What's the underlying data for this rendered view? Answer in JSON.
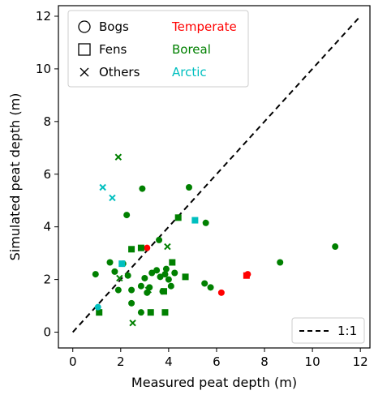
{
  "chart_data": {
    "type": "scatter",
    "xlabel": "Measured peat depth (m)",
    "ylabel": "Simulated peat depth (m)",
    "xlim": [
      -0.6,
      12.4
    ],
    "ylim": [
      -0.6,
      12.4
    ],
    "xticks": [
      "0",
      "2",
      "4",
      "6",
      "8",
      "10",
      "12"
    ],
    "yticks": [
      "0",
      "2",
      "4",
      "6",
      "8",
      "10",
      "12"
    ],
    "legend_placement": "top-left",
    "legend_shapes": [
      {
        "marker": "circle",
        "label": "Bogs"
      },
      {
        "marker": "square",
        "label": "Fens"
      },
      {
        "marker": "x",
        "label": "Others"
      }
    ],
    "legend_colors": [
      {
        "label": "Temperate",
        "color": "#ff0000"
      },
      {
        "label": "Boreal",
        "color": "#008000"
      },
      {
        "label": "Arctic",
        "color": "#00bfbf"
      }
    ],
    "reference_line": {
      "label": "1:1",
      "x": [
        0,
        12
      ],
      "y": [
        0,
        12
      ],
      "style": "dashed",
      "color": "#000000",
      "legend_placement": "bottom-right"
    },
    "series": [
      {
        "name": "Temperate",
        "color": "#ff0000",
        "points": [
          {
            "x": 3.1,
            "y": 3.2,
            "marker": "circle"
          },
          {
            "x": 6.2,
            "y": 1.5,
            "marker": "circle"
          },
          {
            "x": 7.3,
            "y": 2.2,
            "marker": "circle"
          },
          {
            "x": 7.25,
            "y": 2.15,
            "marker": "square"
          }
        ]
      },
      {
        "name": "Boreal",
        "color": "#008000",
        "points": [
          {
            "x": 0.95,
            "y": 2.2,
            "marker": "circle"
          },
          {
            "x": 1.55,
            "y": 2.65,
            "marker": "circle"
          },
          {
            "x": 1.75,
            "y": 2.3,
            "marker": "circle"
          },
          {
            "x": 1.9,
            "y": 1.6,
            "marker": "circle"
          },
          {
            "x": 2.1,
            "y": 2.6,
            "marker": "circle"
          },
          {
            "x": 2.3,
            "y": 2.15,
            "marker": "circle"
          },
          {
            "x": 2.25,
            "y": 4.45,
            "marker": "circle"
          },
          {
            "x": 2.45,
            "y": 1.1,
            "marker": "circle"
          },
          {
            "x": 2.45,
            "y": 1.6,
            "marker": "circle"
          },
          {
            "x": 2.85,
            "y": 0.75,
            "marker": "circle"
          },
          {
            "x": 2.85,
            "y": 1.75,
            "marker": "circle"
          },
          {
            "x": 2.9,
            "y": 5.45,
            "marker": "circle"
          },
          {
            "x": 3.0,
            "y": 2.05,
            "marker": "circle"
          },
          {
            "x": 3.1,
            "y": 1.5,
            "marker": "circle"
          },
          {
            "x": 3.2,
            "y": 1.7,
            "marker": "circle"
          },
          {
            "x": 3.3,
            "y": 2.25,
            "marker": "circle"
          },
          {
            "x": 3.5,
            "y": 2.35,
            "marker": "circle"
          },
          {
            "x": 3.6,
            "y": 3.5,
            "marker": "circle"
          },
          {
            "x": 3.65,
            "y": 2.1,
            "marker": "circle"
          },
          {
            "x": 3.75,
            "y": 1.55,
            "marker": "circle"
          },
          {
            "x": 3.85,
            "y": 2.2,
            "marker": "circle"
          },
          {
            "x": 3.9,
            "y": 2.4,
            "marker": "circle"
          },
          {
            "x": 4.0,
            "y": 2.0,
            "marker": "circle"
          },
          {
            "x": 4.1,
            "y": 1.75,
            "marker": "circle"
          },
          {
            "x": 4.25,
            "y": 2.25,
            "marker": "circle"
          },
          {
            "x": 4.85,
            "y": 5.5,
            "marker": "circle"
          },
          {
            "x": 5.5,
            "y": 1.85,
            "marker": "circle"
          },
          {
            "x": 5.55,
            "y": 4.15,
            "marker": "circle"
          },
          {
            "x": 5.75,
            "y": 1.7,
            "marker": "circle"
          },
          {
            "x": 8.65,
            "y": 2.65,
            "marker": "circle"
          },
          {
            "x": 10.95,
            "y": 3.25,
            "marker": "circle"
          },
          {
            "x": 1.1,
            "y": 0.75,
            "marker": "square"
          },
          {
            "x": 2.45,
            "y": 3.15,
            "marker": "square"
          },
          {
            "x": 2.85,
            "y": 3.2,
            "marker": "square"
          },
          {
            "x": 3.25,
            "y": 0.75,
            "marker": "square"
          },
          {
            "x": 3.8,
            "y": 1.55,
            "marker": "square"
          },
          {
            "x": 3.85,
            "y": 0.75,
            "marker": "square"
          },
          {
            "x": 4.15,
            "y": 2.65,
            "marker": "square"
          },
          {
            "x": 4.4,
            "y": 4.35,
            "marker": "square"
          },
          {
            "x": 4.7,
            "y": 2.1,
            "marker": "square"
          },
          {
            "x": 1.9,
            "y": 6.65,
            "marker": "x"
          },
          {
            "x": 2.5,
            "y": 0.35,
            "marker": "x"
          },
          {
            "x": 3.15,
            "y": 1.6,
            "marker": "x"
          },
          {
            "x": 3.95,
            "y": 3.25,
            "marker": "x"
          },
          {
            "x": 1.95,
            "y": 2.05,
            "marker": "x"
          }
        ]
      },
      {
        "name": "Arctic",
        "color": "#00bfbf",
        "points": [
          {
            "x": 1.05,
            "y": 0.95,
            "marker": "circle"
          },
          {
            "x": 2.05,
            "y": 2.6,
            "marker": "square"
          },
          {
            "x": 5.1,
            "y": 4.25,
            "marker": "square"
          },
          {
            "x": 1.25,
            "y": 5.5,
            "marker": "x"
          },
          {
            "x": 1.65,
            "y": 5.1,
            "marker": "x"
          }
        ]
      }
    ]
  }
}
